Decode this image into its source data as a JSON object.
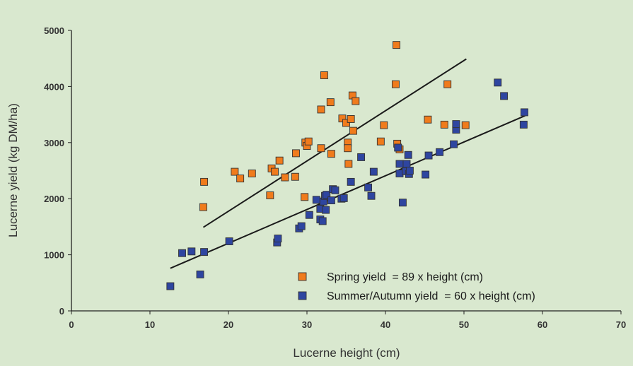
{
  "chart_data": {
    "type": "scatter",
    "xlabel": "Lucerne height (cm)",
    "ylabel": "Lucerne yield (kg DM/ha)",
    "xlim": [
      0,
      70
    ],
    "ylim": [
      0,
      5000
    ],
    "xticks": [
      "0",
      "10",
      "20",
      "30",
      "40",
      "50",
      "60",
      "70"
    ],
    "yticks": [
      "0",
      "1000",
      "2000",
      "3000",
      "4000",
      "5000"
    ],
    "grid": false,
    "legend_position": "bottom-right",
    "series": [
      {
        "name": "Spring yield  = 89 x height (cm)",
        "color": "#f07b1c",
        "points": [
          [
            16.8,
            1850
          ],
          [
            16.9,
            2300
          ],
          [
            20.8,
            2480
          ],
          [
            21.5,
            2360
          ],
          [
            23.0,
            2450
          ],
          [
            25.3,
            2060
          ],
          [
            25.5,
            2540
          ],
          [
            25.9,
            2480
          ],
          [
            26.5,
            2680
          ],
          [
            27.2,
            2380
          ],
          [
            28.5,
            2390
          ],
          [
            28.6,
            2810
          ],
          [
            29.7,
            2030
          ],
          [
            29.8,
            3000
          ],
          [
            30.0,
            2940
          ],
          [
            30.2,
            3020
          ],
          [
            31.8,
            2900
          ],
          [
            31.8,
            3590
          ],
          [
            32.2,
            4200
          ],
          [
            33.0,
            3720
          ],
          [
            33.1,
            2800
          ],
          [
            34.5,
            3430
          ],
          [
            35.0,
            3350
          ],
          [
            35.2,
            3000
          ],
          [
            35.2,
            2900
          ],
          [
            35.3,
            2620
          ],
          [
            35.6,
            3420
          ],
          [
            35.8,
            3840
          ],
          [
            35.9,
            3210
          ],
          [
            36.2,
            3740
          ],
          [
            39.4,
            3020
          ],
          [
            39.8,
            3310
          ],
          [
            41.3,
            4040
          ],
          [
            41.4,
            4740
          ],
          [
            41.5,
            2980
          ],
          [
            41.8,
            2880
          ],
          [
            45.4,
            3410
          ],
          [
            47.5,
            3320
          ],
          [
            47.9,
            4040
          ],
          [
            50.2,
            3310
          ]
        ]
      },
      {
        "name": "Summer/Autumn yield  = 60 x height (cm)",
        "color": "#2e45a0",
        "points": [
          [
            12.6,
            440
          ],
          [
            14.1,
            1030
          ],
          [
            15.3,
            1060
          ],
          [
            16.4,
            650
          ],
          [
            16.9,
            1050
          ],
          [
            20.1,
            1240
          ],
          [
            26.2,
            1220
          ],
          [
            26.3,
            1290
          ],
          [
            29.0,
            1470
          ],
          [
            29.3,
            1510
          ],
          [
            30.3,
            1710
          ],
          [
            31.2,
            1980
          ],
          [
            31.7,
            1630
          ],
          [
            31.7,
            1820
          ],
          [
            32.0,
            1600
          ],
          [
            32.1,
            1950
          ],
          [
            32.3,
            2050
          ],
          [
            32.4,
            1800
          ],
          [
            32.5,
            2070
          ],
          [
            33.1,
            1970
          ],
          [
            33.3,
            2170
          ],
          [
            33.6,
            2150
          ],
          [
            34.4,
            2000
          ],
          [
            34.7,
            2010
          ],
          [
            35.6,
            2300
          ],
          [
            36.9,
            2740
          ],
          [
            37.8,
            2200
          ],
          [
            38.2,
            2050
          ],
          [
            38.5,
            2480
          ],
          [
            41.6,
            2910
          ],
          [
            41.8,
            2620
          ],
          [
            41.8,
            2450
          ],
          [
            42.2,
            1930
          ],
          [
            42.6,
            2490
          ],
          [
            42.7,
            2620
          ],
          [
            42.9,
            2780
          ],
          [
            43.0,
            2440
          ],
          [
            43.1,
            2500
          ],
          [
            45.1,
            2430
          ],
          [
            45.5,
            2770
          ],
          [
            46.9,
            2830
          ],
          [
            48.7,
            2970
          ],
          [
            49.0,
            3230
          ],
          [
            49.0,
            3330
          ],
          [
            54.3,
            4070
          ],
          [
            55.1,
            3830
          ],
          [
            57.6,
            3320
          ],
          [
            57.7,
            3540
          ]
        ]
      }
    ],
    "trendlines": [
      {
        "series": "Spring",
        "x": [
          16.8,
          50.3
        ],
        "y": [
          1490,
          4490
        ],
        "color": "#1a1a1a"
      },
      {
        "series": "Summer/Autumn",
        "x": [
          12.6,
          57.8
        ],
        "y": [
          760,
          3480
        ],
        "color": "#1a1a1a"
      }
    ]
  }
}
